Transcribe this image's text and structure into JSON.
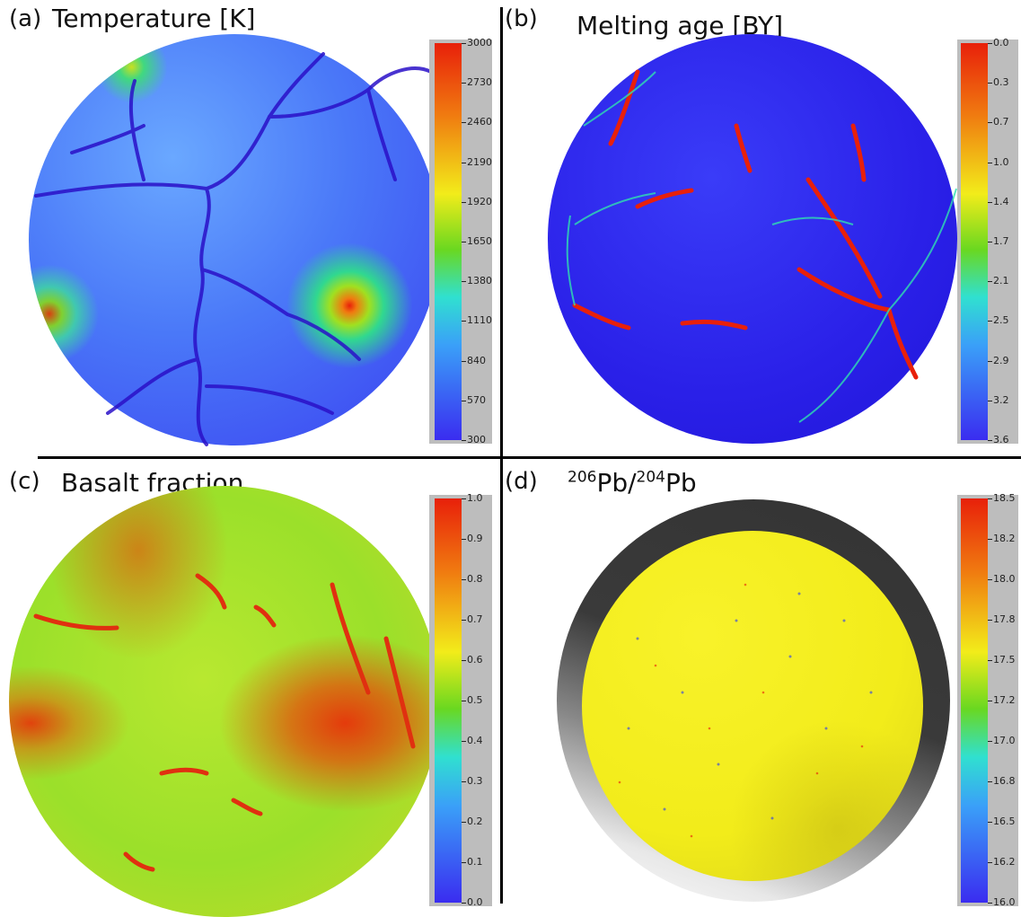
{
  "panels": [
    {
      "label": "(a)",
      "title": "Temperature [K]",
      "colorbar_ticks": [
        "3000",
        "2730",
        "2460",
        "2190",
        "1920",
        "1650",
        "1380",
        "1110",
        "840",
        "570",
        "300"
      ]
    },
    {
      "label": "(b)",
      "title": "Melting age [BY]",
      "colorbar_ticks": [
        "0.0",
        "0.3",
        "0.7",
        "1.0",
        "1.4",
        "1.7",
        "2.1",
        "2.5",
        "2.9",
        "3.2",
        "3.6"
      ]
    },
    {
      "label": "(c)",
      "title": "Basalt fraction",
      "colorbar_ticks": [
        "1.0",
        "0.9",
        "0.8",
        "0.7",
        "0.6",
        "0.5",
        "0.4",
        "0.3",
        "0.2",
        "0.1",
        "0.0"
      ]
    },
    {
      "label": "(d)",
      "title_parts": {
        "sup1": "206",
        "base1": "Pb/",
        "sup2": "204",
        "base2": "Pb"
      },
      "colorbar_ticks": [
        "18.5",
        "18.2",
        "18.0",
        "17.8",
        "17.5",
        "17.2",
        "17.0",
        "16.8",
        "16.5",
        "16.2",
        "16.0"
      ]
    }
  ],
  "colors": {
    "cold_blue": "#3a2cf0",
    "hot_red": "#e8200a",
    "basalt_green": "#9be02a",
    "lead_yellow": "#f2ec1a",
    "shell_dark": "#3a3a3a"
  }
}
